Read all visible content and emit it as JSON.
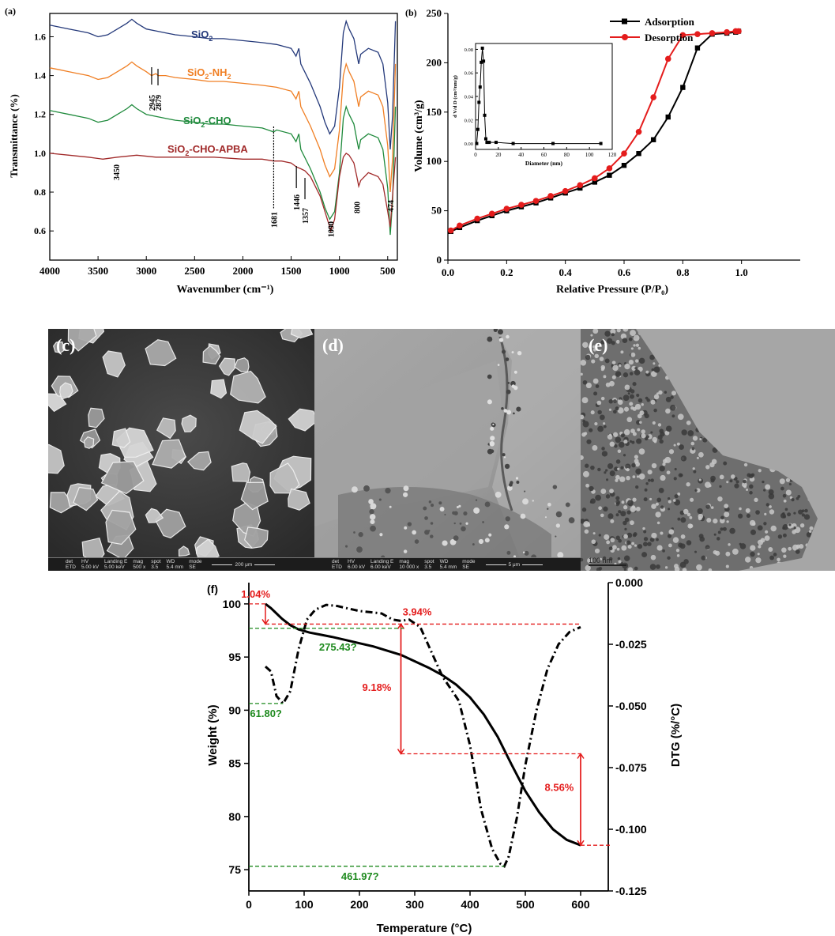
{
  "colors": {
    "sio2": "#24397a",
    "nh2": "#f07f24",
    "cho": "#1f8a3c",
    "apba": "#a12a2a",
    "adsorption": "#000000",
    "desorption": "#e41c1c",
    "annot_red": "#e41c1c",
    "annot_green": "#1e8a1e"
  },
  "chart_data": [
    {
      "panel": "(a)",
      "type": "line",
      "xlabel": "Wavenumber (cm⁻¹)",
      "ylabel": "Transmittance (%)",
      "xlim": [
        4000,
        400
      ],
      "ylim": [
        0.45,
        1.72
      ],
      "x_reversed": true,
      "x_ticks": [
        "4000",
        "3500",
        "3000",
        "2500",
        "2000",
        "1500",
        "1000",
        "500"
      ],
      "y_ticks": [
        "0.6",
        "0.8",
        "1.0",
        "1.2",
        "1.4",
        "1.6"
      ],
      "series": [
        {
          "name": "SiO₂",
          "label_main": "SiO",
          "label_sub": "2",
          "offset": 0.44,
          "x": [
            4000,
            3900,
            3800,
            3700,
            3600,
            3500,
            3400,
            3300,
            3200,
            3150,
            3100,
            3000,
            2900,
            2800,
            2700,
            2500,
            2350,
            2200,
            2000,
            1800,
            1650,
            1500,
            1450,
            1420,
            1400,
            1300,
            1200,
            1150,
            1100,
            1050,
            1000,
            960,
            930,
            900,
            850,
            820,
            800,
            780,
            700,
            600,
            550,
            500,
            474,
            450,
            420
          ],
          "y": [
            1.22,
            1.21,
            1.2,
            1.19,
            1.18,
            1.16,
            1.17,
            1.2,
            1.23,
            1.25,
            1.23,
            1.2,
            1.19,
            1.18,
            1.17,
            1.16,
            1.15,
            1.15,
            1.14,
            1.13,
            1.12,
            1.1,
            1.06,
            1.1,
            1.02,
            0.92,
            0.8,
            0.72,
            0.66,
            0.7,
            0.9,
            1.18,
            1.24,
            1.2,
            1.15,
            1.07,
            1.02,
            1.07,
            1.1,
            1.08,
            1.02,
            0.82,
            0.58,
            0.75,
            1.24
          ]
        },
        {
          "name": "SiO₂-NH₂",
          "label_main": "SiO",
          "label_sub": "2",
          "label_tail": "-NH",
          "label_sub2": "2",
          "offset": 0.22,
          "x": [
            4000,
            3900,
            3800,
            3700,
            3600,
            3500,
            3400,
            3300,
            3200,
            3150,
            3100,
            3000,
            2945,
            2900,
            2879,
            2800,
            2700,
            2500,
            2350,
            2200,
            2000,
            1800,
            1650,
            1500,
            1450,
            1420,
            1400,
            1300,
            1200,
            1150,
            1100,
            1050,
            1000,
            960,
            930,
            900,
            850,
            820,
            800,
            780,
            700,
            600,
            550,
            500,
            474,
            450,
            420
          ],
          "y": [
            1.22,
            1.21,
            1.2,
            1.19,
            1.18,
            1.16,
            1.17,
            1.2,
            1.23,
            1.25,
            1.23,
            1.2,
            1.18,
            1.19,
            1.18,
            1.18,
            1.17,
            1.16,
            1.15,
            1.15,
            1.14,
            1.13,
            1.12,
            1.1,
            1.06,
            1.1,
            1.02,
            0.92,
            0.8,
            0.72,
            0.66,
            0.7,
            0.9,
            1.18,
            1.24,
            1.2,
            1.15,
            1.07,
            1.02,
            1.07,
            1.1,
            1.08,
            1.02,
            0.82,
            0.58,
            0.75,
            1.24
          ]
        },
        {
          "name": "SiO₂-CHO",
          "label_main": "SiO",
          "label_sub": "2",
          "label_tail": "-CHO",
          "offset": 0.0,
          "x": [
            4000,
            3900,
            3800,
            3700,
            3600,
            3500,
            3400,
            3300,
            3200,
            3150,
            3100,
            3000,
            2900,
            2800,
            2700,
            2500,
            2350,
            2200,
            2000,
            1800,
            1681,
            1650,
            1500,
            1450,
            1420,
            1400,
            1300,
            1200,
            1150,
            1100,
            1050,
            1000,
            960,
            930,
            900,
            850,
            820,
            800,
            780,
            700,
            600,
            550,
            500,
            474,
            450,
            420
          ],
          "y": [
            1.22,
            1.21,
            1.2,
            1.19,
            1.18,
            1.16,
            1.17,
            1.2,
            1.23,
            1.25,
            1.23,
            1.2,
            1.19,
            1.18,
            1.17,
            1.16,
            1.15,
            1.15,
            1.14,
            1.13,
            1.11,
            1.12,
            1.1,
            1.06,
            1.1,
            1.02,
            0.92,
            0.8,
            0.72,
            0.66,
            0.7,
            0.9,
            1.18,
            1.24,
            1.2,
            1.15,
            1.07,
            1.02,
            1.07,
            1.1,
            1.08,
            1.02,
            0.82,
            0.58,
            0.75,
            1.24
          ]
        },
        {
          "name": "SiO₂-CHO-APBA",
          "label_main": "SiO",
          "label_sub": "2",
          "label_tail": "-CHO-APBA",
          "offset": 0.0,
          "x": [
            4000,
            3800,
            3600,
            3450,
            3300,
            3100,
            2900,
            2700,
            2500,
            2300,
            2000,
            1800,
            1681,
            1600,
            1500,
            1446,
            1400,
            1357,
            1300,
            1200,
            1150,
            1100,
            1090,
            1050,
            1000,
            960,
            930,
            900,
            850,
            820,
            800,
            780,
            700,
            600,
            550,
            500,
            474,
            450,
            420
          ],
          "y": [
            1.0,
            0.99,
            0.98,
            0.97,
            0.98,
            0.99,
            0.98,
            0.98,
            0.98,
            0.98,
            0.97,
            0.97,
            0.96,
            0.96,
            0.95,
            0.93,
            0.92,
            0.91,
            0.88,
            0.78,
            0.7,
            0.62,
            0.6,
            0.66,
            0.88,
            0.98,
            1.0,
            0.99,
            0.95,
            0.88,
            0.83,
            0.86,
            0.9,
            0.88,
            0.84,
            0.7,
            0.62,
            0.78,
            0.98
          ]
        }
      ],
      "annotations": [
        "3450",
        "2945",
        "2879",
        "1681",
        "1446",
        "1357",
        "1090",
        "800",
        "474"
      ]
    },
    {
      "panel": "(b)",
      "type": "line",
      "xlabel": "Relative Pressure (P/P₀)",
      "ylabel": "Volume (cm³/g)",
      "xlim": [
        0,
        1.2
      ],
      "ylim": [
        0,
        250
      ],
      "x_ticks": [
        "0.0",
        "0.2",
        "0.4",
        "0.6",
        "0.8",
        "1.0"
      ],
      "y_ticks": [
        "0",
        "50",
        "100",
        "150",
        "200",
        "250"
      ],
      "legend": "top-right",
      "series": [
        {
          "name": "Adsorption",
          "marker": "square",
          "x": [
            0.01,
            0.04,
            0.1,
            0.15,
            0.2,
            0.25,
            0.3,
            0.35,
            0.4,
            0.45,
            0.5,
            0.55,
            0.6,
            0.65,
            0.7,
            0.75,
            0.8,
            0.85,
            0.9,
            0.95,
            0.98,
            0.99
          ],
          "y": [
            29,
            33,
            40,
            45,
            50,
            54,
            58,
            63,
            68,
            73,
            79,
            86,
            96,
            108,
            122,
            145,
            175,
            215,
            229,
            230,
            231,
            232
          ]
        },
        {
          "name": "Desorption",
          "marker": "circle",
          "x": [
            0.01,
            0.04,
            0.1,
            0.15,
            0.2,
            0.25,
            0.3,
            0.35,
            0.4,
            0.45,
            0.5,
            0.55,
            0.6,
            0.65,
            0.7,
            0.75,
            0.8,
            0.85,
            0.9,
            0.95,
            0.98,
            0.99
          ],
          "y": [
            30,
            35,
            42,
            47,
            52,
            56,
            60,
            65,
            70,
            76,
            83,
            93,
            108,
            130,
            165,
            204,
            228,
            229,
            230,
            231,
            232,
            232
          ]
        }
      ],
      "inset": {
        "xlabel": "Diameter (nm)",
        "ylabel": "d V/d D (cm³/nm/g)",
        "xlim": [
          0,
          120
        ],
        "ylim": [
          -0.005,
          0.085
        ],
        "x_ticks": [
          "0",
          "20",
          "40",
          "60",
          "80",
          "100",
          "120"
        ],
        "y_ticks": [
          "0.00",
          "0.02",
          "0.04",
          "0.06",
          "0.08"
        ],
        "x": [
          1,
          2,
          3,
          4,
          5,
          6,
          7,
          8,
          9,
          10,
          12,
          18,
          33,
          68,
          110
        ],
        "y": [
          0.0,
          0.012,
          0.035,
          0.048,
          0.069,
          0.081,
          0.07,
          0.024,
          0.004,
          0.001,
          0.001,
          0.001,
          0.0,
          0.0,
          0.0
        ]
      }
    },
    {
      "panel": "(f)",
      "type": "line",
      "xlabel": "Temperature (°C)",
      "ylabel": "Weight (%)",
      "ylabel_right": "DTG (%/°C)",
      "xlim": [
        0,
        650
      ],
      "ylim": [
        73,
        102
      ],
      "ylim_right": [
        -0.125,
        0.0
      ],
      "x_ticks": [
        "0",
        "100",
        "200",
        "300",
        "400",
        "500",
        "600"
      ],
      "y_ticks": [
        "75",
        "80",
        "85",
        "90",
        "95",
        "100"
      ],
      "y_ticks_right": [
        "0.000",
        "-0.025",
        "-0.050",
        "-0.075",
        "-0.100",
        "-0.125"
      ],
      "series": [
        {
          "name": "Weight",
          "style": "solid",
          "x": [
            30,
            40,
            50,
            60,
            75,
            90,
            110,
            130,
            150,
            175,
            200,
            225,
            250,
            275,
            300,
            325,
            350,
            375,
            400,
            425,
            450,
            475,
            500,
            525,
            550,
            575,
            600
          ],
          "y": [
            100.0,
            99.6,
            99.1,
            98.6,
            98.0,
            97.6,
            97.3,
            97.1,
            96.9,
            96.6,
            96.3,
            96.0,
            95.6,
            95.2,
            94.6,
            94.0,
            93.3,
            92.4,
            91.2,
            89.6,
            87.5,
            84.9,
            82.4,
            80.4,
            78.8,
            77.8,
            77.3
          ]
        },
        {
          "name": "DTG",
          "style": "dash-dot",
          "x": [
            30,
            40,
            50,
            62,
            75,
            90,
            105,
            120,
            140,
            160,
            180,
            200,
            220,
            240,
            260,
            275,
            290,
            310,
            330,
            350,
            380,
            400,
            420,
            440,
            455,
            462,
            470,
            485,
            500,
            520,
            540,
            560,
            580,
            600
          ],
          "y": [
            -0.034,
            -0.036,
            -0.046,
            -0.049,
            -0.044,
            -0.027,
            -0.015,
            -0.011,
            -0.009,
            -0.0095,
            -0.0105,
            -0.0115,
            -0.012,
            -0.0125,
            -0.015,
            -0.0155,
            -0.015,
            -0.018,
            -0.028,
            -0.038,
            -0.048,
            -0.066,
            -0.092,
            -0.108,
            -0.114,
            -0.115,
            -0.111,
            -0.095,
            -0.074,
            -0.052,
            -0.035,
            -0.025,
            -0.02,
            -0.018
          ]
        }
      ],
      "annotations": {
        "loss1": "1.04%",
        "loss2": "3.94%",
        "loss3": "9.18%",
        "loss4": "8.56%",
        "peak1": "61.80?",
        "peak2": "275.43?",
        "peak3": "461.97?"
      }
    }
  ],
  "panel_a": {
    "label": "(a)"
  },
  "panel_b": {
    "label": "(b)"
  },
  "panel_c": {
    "label": "(c)",
    "databar": [
      "det",
      "ETD",
      "HV",
      "5.00 kV",
      "Landing E",
      "5.00 keV",
      "mag",
      "500 x",
      "spot",
      "3.5",
      "WD",
      "5.4 mm",
      "mode",
      "SE"
    ],
    "scale": "200 μm"
  },
  "panel_d": {
    "label": "(d)",
    "databar": [
      "det",
      "ETD",
      "HV",
      "6.00 kV",
      "Landing E",
      "6.00 keV",
      "mag",
      "10 000 x",
      "spot",
      "3.5",
      "WD",
      "5.4 mm",
      "mode",
      "SE"
    ],
    "scale": "5 μm"
  },
  "panel_e": {
    "label": "(e)",
    "scale": "100 nm"
  },
  "panel_f": {
    "label": "(f)"
  }
}
